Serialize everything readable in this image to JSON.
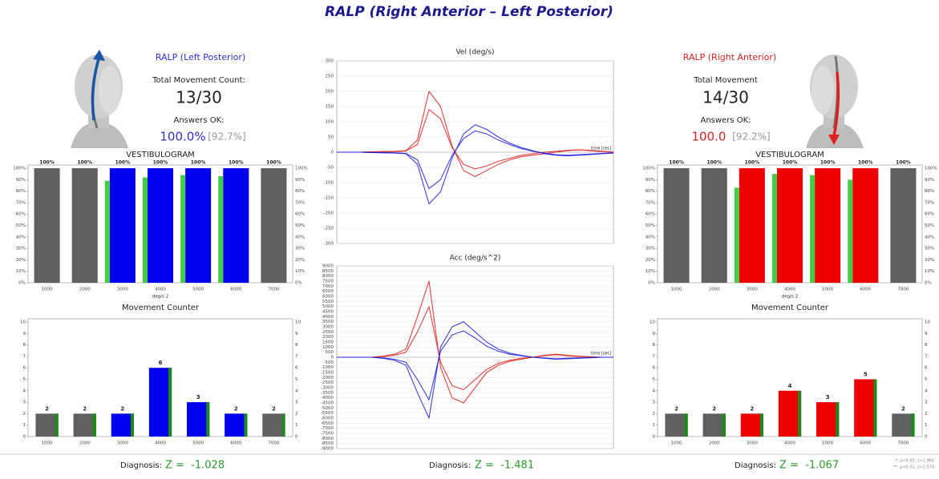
{
  "title": "RALP (Right Anterior – Left Posterior)",
  "left": {
    "heading": "RALP (Left Posterior)",
    "count_label": "Total Movement Count:",
    "count": "13/30",
    "answers_label": "Answers OK:",
    "answers": "100.0%",
    "answers_ref": "[92.7%]",
    "diagnosis_label": "Diagnosis:",
    "diagnosis": "Z =  -1.028"
  },
  "center": {
    "diagnosis_label": "Diagnosis:",
    "diagnosis": "Z =  -1.481"
  },
  "right": {
    "heading": "RALP (Right Anterior)",
    "count_label": "Total Movement",
    "count": "14/30",
    "answers_label": "Answers OK:",
    "answers": "100.0",
    "answers_ref": "[92.2%]",
    "diagnosis_label": "Diagnosis:",
    "diagnosis": "Z =  -1.067"
  },
  "footnotes": [
    "*: p<0.05, z>1.960",
    "**: p<0.01, z>2.576"
  ],
  "chart_data": [
    {
      "type": "bar",
      "title": "VESTIBULOGRAM",
      "x_label": "deg/s 2",
      "categories": [
        1000,
        2000,
        3000,
        4000,
        5000,
        6000,
        7000
      ],
      "series": [
        {
          "colors": [
            "#606060",
            "#606060",
            "#0000ee",
            "#0000ee",
            "#0000ee",
            "#0000ee",
            "#606060"
          ],
          "values": [
            100,
            100,
            100,
            100,
            100,
            100,
            100
          ],
          "value_labels": [
            "100%",
            "100%",
            "100%",
            "100%",
            "100%",
            "100%",
            "100%"
          ]
        },
        {
          "color": "#44cc44",
          "values": [
            null,
            null,
            89,
            92,
            94,
            93,
            null
          ]
        }
      ],
      "ylim": [
        0,
        100
      ],
      "yticks": [
        {
          "value": 0,
          "label": "0%"
        },
        {
          "value": 10,
          "label": "10%"
        },
        {
          "value": 20,
          "label": "20%"
        },
        {
          "value": 30,
          "label": "30%"
        },
        {
          "value": 40,
          "label": "40%"
        },
        {
          "value": 50,
          "label": "50%"
        },
        {
          "value": 60,
          "label": "60%"
        },
        {
          "value": 70,
          "label": "70%"
        },
        {
          "value": 80,
          "label": "80%"
        },
        {
          "value": 90,
          "label": "90%"
        },
        {
          "value": 100,
          "label": "100%"
        }
      ]
    },
    {
      "type": "bar",
      "title": "Movement Counter",
      "categories": [
        1000,
        2000,
        3000,
        4000,
        5000,
        6000,
        7000
      ],
      "series": [
        {
          "colors": [
            "#606060",
            "#606060",
            "#0000ee",
            "#0000ee",
            "#0000ee",
            "#0000ee",
            "#606060"
          ],
          "values": [
            2,
            2,
            2,
            6,
            3,
            2,
            2
          ],
          "stripe_color": "#1a8a1a"
        }
      ],
      "ylim": [
        0,
        10
      ],
      "yticks": [
        0,
        1,
        2,
        3,
        4,
        5,
        6,
        7,
        8,
        9,
        10
      ]
    },
    {
      "type": "line",
      "title": "Vel (deg/s)",
      "x_label": "time [sec]",
      "x": [
        0,
        1,
        2,
        3,
        4,
        5,
        6,
        7,
        8,
        9,
        10,
        11,
        12,
        13,
        14,
        15,
        16,
        17,
        18,
        19,
        20,
        21,
        22,
        23,
        24
      ],
      "xlim": [
        0,
        24
      ],
      "series": [
        {
          "color": "#e02020",
          "values": [
            0,
            0,
            0,
            1,
            2,
            3,
            5,
            40,
            200,
            150,
            20,
            -60,
            -80,
            -60,
            -40,
            -25,
            -15,
            -10,
            -5,
            0,
            5,
            8,
            5,
            2,
            0
          ]
        },
        {
          "color": "#e02020",
          "values": [
            0,
            0,
            0,
            1,
            1,
            2,
            4,
            25,
            140,
            110,
            15,
            -40,
            -55,
            -45,
            -30,
            -20,
            -10,
            -5,
            0,
            3,
            6,
            8,
            6,
            3,
            0
          ]
        },
        {
          "color": "#2020e0",
          "values": [
            0,
            0,
            0,
            -1,
            -2,
            -3,
            -5,
            -40,
            -170,
            -130,
            -20,
            60,
            90,
            75,
            50,
            30,
            15,
            5,
            -5,
            -10,
            -12,
            -10,
            -8,
            -5,
            -3
          ]
        },
        {
          "color": "#2020e0",
          "values": [
            0,
            0,
            0,
            -1,
            -1,
            -2,
            -4,
            -25,
            -120,
            -90,
            -10,
            45,
            70,
            60,
            40,
            25,
            12,
            3,
            -3,
            -8,
            -10,
            -8,
            -6,
            -4,
            -2
          ]
        }
      ],
      "ylim": [
        -300,
        300
      ],
      "yticks": [
        300,
        250,
        200,
        150,
        100,
        50,
        0,
        -50,
        -100,
        -150,
        -200,
        -250,
        -300
      ],
      "grid": true
    },
    {
      "type": "line",
      "title": "Acc (deg/s^2)",
      "x_label": "time [sec]",
      "x": [
        0,
        1,
        2,
        3,
        4,
        5,
        6,
        7,
        8,
        9,
        10,
        11,
        12,
        13,
        14,
        15,
        16,
        17,
        18,
        19,
        20,
        21,
        22,
        23,
        24
      ],
      "xlim": [
        0,
        24
      ],
      "series": [
        {
          "color": "#e02020",
          "values": [
            0,
            0,
            0,
            0,
            100,
            300,
            800,
            4000,
            7500,
            -1000,
            -4000,
            -4500,
            -3000,
            -1500,
            -800,
            -400,
            -200,
            0,
            200,
            300,
            200,
            100,
            50,
            0,
            0
          ]
        },
        {
          "color": "#e02020",
          "values": [
            0,
            0,
            0,
            0,
            60,
            200,
            500,
            2500,
            5000,
            -500,
            -2800,
            -3200,
            -2200,
            -1200,
            -600,
            -300,
            -100,
            0,
            150,
            250,
            150,
            80,
            30,
            0,
            0
          ]
        },
        {
          "color": "#2020e0",
          "values": [
            0,
            0,
            0,
            0,
            -100,
            -300,
            -800,
            -3500,
            -6000,
            1000,
            3000,
            3500,
            2500,
            1500,
            800,
            400,
            200,
            0,
            -100,
            -200,
            -150,
            -100,
            -50,
            0,
            0
          ]
        },
        {
          "color": "#2020e0",
          "values": [
            0,
            0,
            0,
            0,
            -60,
            -200,
            -500,
            -2200,
            -4200,
            600,
            2200,
            2600,
            1900,
            1100,
            600,
            300,
            150,
            0,
            -80,
            -150,
            -100,
            -60,
            -30,
            0,
            0
          ]
        }
      ],
      "ylim": [
        -9000,
        9000
      ],
      "yticks": [
        9000,
        8500,
        8000,
        7500,
        7000,
        6500,
        6000,
        5500,
        5000,
        4500,
        4000,
        3500,
        3000,
        2500,
        2000,
        1500,
        1000,
        500,
        0,
        -500,
        -1000,
        -1500,
        -2000,
        -2500,
        -3000,
        -3500,
        -4000,
        -4500,
        -5000,
        -5500,
        -6000,
        -6500,
        -7000,
        -7500,
        -8000,
        -8500,
        -9000
      ],
      "grid": true
    },
    {
      "type": "bar",
      "title": "VESTIBULOGRAM",
      "x_label": "deg/s 2",
      "categories": [
        1000,
        2000,
        3000,
        4000,
        5000,
        6000,
        7000
      ],
      "series": [
        {
          "colors": [
            "#606060",
            "#606060",
            "#ee0000",
            "#ee0000",
            "#ee0000",
            "#ee0000",
            "#606060"
          ],
          "values": [
            100,
            100,
            100,
            100,
            100,
            100,
            100
          ],
          "value_labels": [
            "100%",
            "100%",
            "100%",
            "100%",
            "100%",
            "100%",
            "100%"
          ]
        },
        {
          "color": "#44cc44",
          "values": [
            null,
            null,
            83,
            95,
            94,
            90,
            null
          ]
        }
      ],
      "ylim": [
        0,
        100
      ],
      "yticks": [
        {
          "value": 0,
          "label": "0%"
        },
        {
          "value": 10,
          "label": "10%"
        },
        {
          "value": 20,
          "label": "20%"
        },
        {
          "value": 30,
          "label": "30%"
        },
        {
          "value": 40,
          "label": "40%"
        },
        {
          "value": 50,
          "label": "50%"
        },
        {
          "value": 60,
          "label": "60%"
        },
        {
          "value": 70,
          "label": "70%"
        },
        {
          "value": 80,
          "label": "80%"
        },
        {
          "value": 90,
          "label": "90%"
        },
        {
          "value": 100,
          "label": "100%"
        }
      ]
    },
    {
      "type": "bar",
      "title": "Movement Counter",
      "categories": [
        1000,
        2000,
        3000,
        4000,
        5000,
        6000,
        7000
      ],
      "series": [
        {
          "colors": [
            "#606060",
            "#606060",
            "#ee0000",
            "#ee0000",
            "#ee0000",
            "#ee0000",
            "#606060"
          ],
          "values": [
            2,
            2,
            2,
            4,
            3,
            5,
            2
          ],
          "stripe_color": "#1a8a1a"
        }
      ],
      "ylim": [
        0,
        10
      ],
      "yticks": [
        0,
        1,
        2,
        3,
        4,
        5,
        6,
        7,
        8,
        9,
        10
      ]
    }
  ]
}
